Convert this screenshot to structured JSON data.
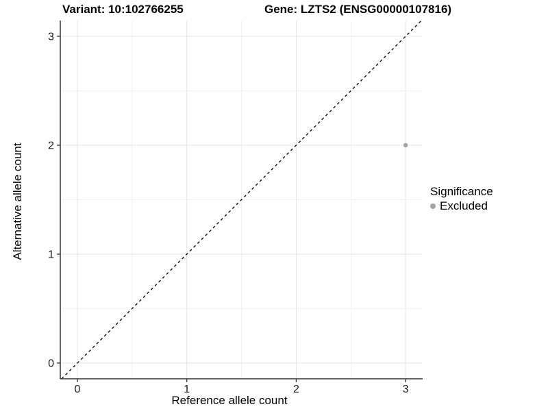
{
  "header": {
    "variant_title": "Variant: 10:102766255",
    "gene_title": "Gene: LZTS2 (ENSG00000107816)"
  },
  "chart_data": {
    "type": "scatter",
    "title": "Variant: 10:102766255   Gene: LZTS2 (ENSG00000107816)",
    "xlabel": "Reference allele count",
    "ylabel": "Alternative allele count",
    "xlim": [
      -0.16,
      3.16
    ],
    "ylim": [
      -0.15,
      3.15
    ],
    "xticks": [
      0,
      1,
      2,
      3
    ],
    "yticks": [
      0,
      1,
      2,
      3
    ],
    "minor_gridlines": [
      0.5,
      1.5,
      2.5
    ],
    "grid": true,
    "series": [
      {
        "name": "Excluded",
        "points": [
          {
            "x": 3,
            "y": 2
          }
        ]
      }
    ],
    "reference_line": {
      "kind": "identity",
      "style": "dashed",
      "color": "#000000"
    },
    "legend": {
      "title": "Significance",
      "position": "right",
      "entries": [
        {
          "label": "Excluded",
          "color": "#a4a4a4"
        }
      ]
    }
  },
  "colors": {
    "background": "#ffffff",
    "grid_major": "#e4e4e4",
    "grid_minor": "#f1f1f1",
    "axis_line": "#333333",
    "tick_mark": "#333333",
    "tick_label": "#1a1a1a",
    "point": "#a4a4a4",
    "dashed_line": "#000000"
  }
}
